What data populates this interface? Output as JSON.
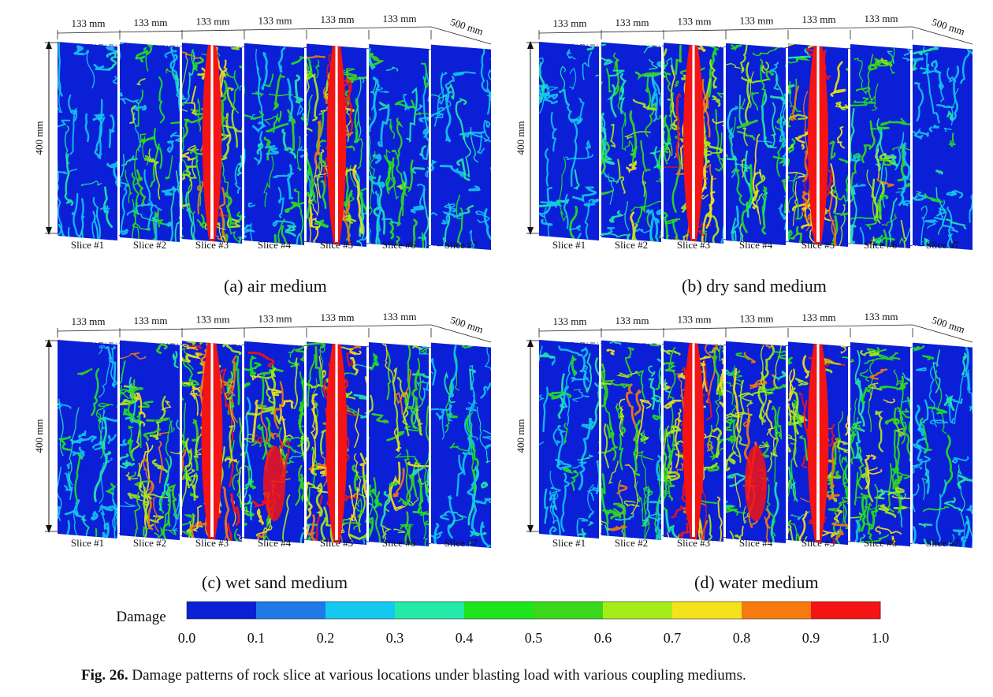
{
  "panels": [
    {
      "id": "a",
      "caption": "(a) air medium",
      "seed": 11,
      "damage_levels": [
        0.2,
        0.45,
        0.75,
        0.42,
        0.75,
        0.45,
        0.2
      ]
    },
    {
      "id": "b",
      "caption": "(b) dry sand medium",
      "seed": 23,
      "damage_levels": [
        0.25,
        0.55,
        0.85,
        0.55,
        0.85,
        0.55,
        0.25
      ]
    },
    {
      "id": "c",
      "caption": "(c) wet sand medium",
      "seed": 37,
      "damage_levels": [
        0.3,
        0.65,
        0.9,
        0.7,
        0.9,
        0.65,
        0.3
      ]
    },
    {
      "id": "d",
      "caption": "(d) water medium",
      "seed": 53,
      "damage_levels": [
        0.3,
        0.65,
        0.9,
        0.72,
        0.9,
        0.65,
        0.3
      ]
    }
  ],
  "dimension_labels": {
    "slice_spacing": "133 mm",
    "length": "500 mm",
    "height": "400 mm"
  },
  "slice_labels": [
    "Slice #1",
    "Slice #2",
    "Slice #3",
    "Slice #4",
    "Slice #5",
    "Slice #6",
    "Slice #7"
  ],
  "colorbar": {
    "label": "Damage",
    "ticks": [
      "0.0",
      "0.1",
      "0.2",
      "0.3",
      "0.4",
      "0.5",
      "0.6",
      "0.7",
      "0.8",
      "0.9",
      "1.0"
    ],
    "colors": [
      "#0b1fd6",
      "#1f7ae8",
      "#14c8f0",
      "#22eaa8",
      "#1ee41e",
      "#3ad81a",
      "#a6ec16",
      "#f4e21a",
      "#f77a0e",
      "#f41414"
    ]
  },
  "figure_caption": {
    "label": "Fig. 26.",
    "text": "Damage patterns of rock slice at various locations under blasting load with various coupling mediums."
  }
}
